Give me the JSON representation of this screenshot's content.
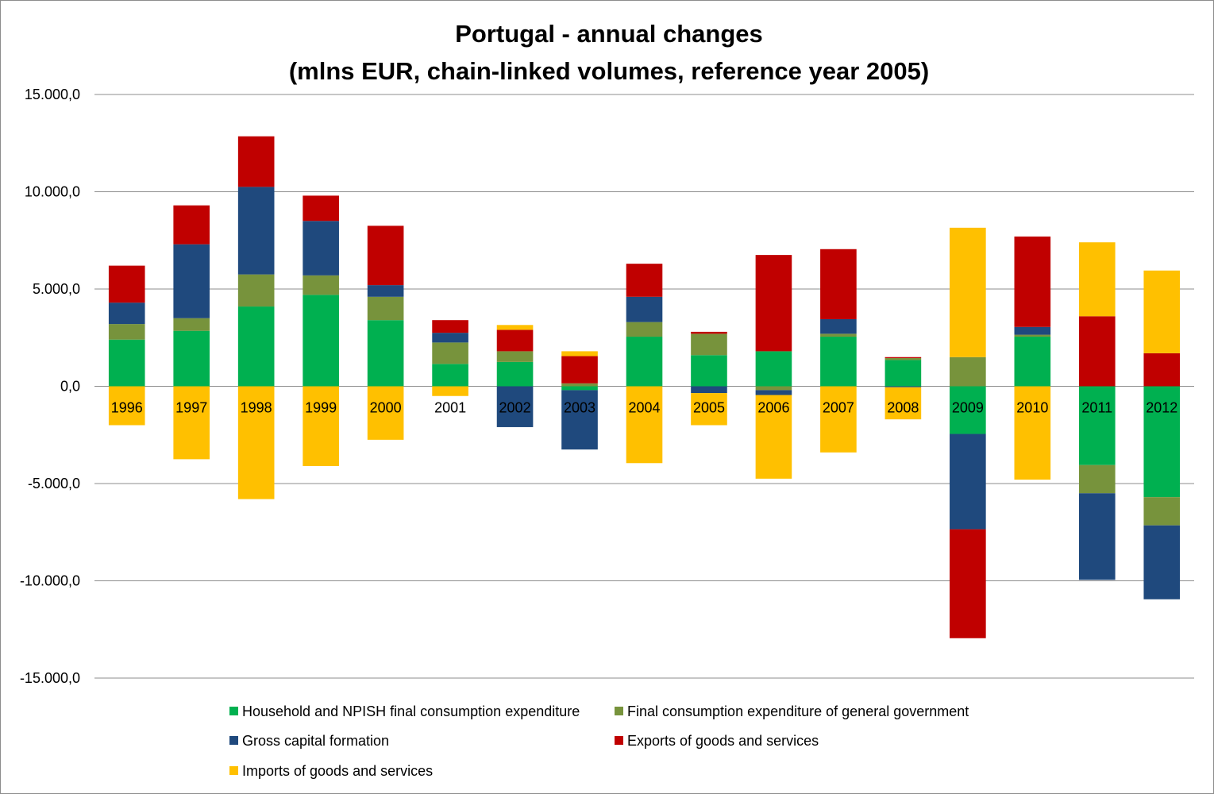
{
  "chart_data": {
    "type": "bar",
    "stacked": true,
    "title": [
      "Portugal - annual changes",
      "(mlns EUR, chain-linked volumes, reference year 2005)"
    ],
    "xlabel": "",
    "ylabel": "",
    "ylim": [
      -15000,
      15000
    ],
    "yticks": [
      15000,
      10000,
      5000,
      0,
      -5000,
      -10000,
      -15000
    ],
    "ytick_labels": [
      "15.000,0",
      "10.000,0",
      "5.000,0",
      "0,0",
      "-5.000,0",
      "-10.000,0",
      "-15.000,0"
    ],
    "grid": true,
    "legend_position": "bottom",
    "categories": [
      "1996",
      "1997",
      "1998",
      "1999",
      "2000",
      "2001",
      "2002",
      "2003",
      "2004",
      "2005",
      "2006",
      "2007",
      "2008",
      "2009",
      "2010",
      "2011",
      "2012"
    ],
    "series": [
      {
        "name": "Household and NPISH final consumption expenditure",
        "color": "#00b050",
        "values": [
          2400,
          2850,
          4100,
          4700,
          3400,
          1150,
          1250,
          -200,
          2550,
          1600,
          1800,
          2550,
          1350,
          -2450,
          2550,
          -4050,
          -5700
        ]
      },
      {
        "name": "Final consumption expenditure of general government",
        "color": "#77933c",
        "values": [
          800,
          650,
          1650,
          1000,
          1200,
          1100,
          550,
          150,
          750,
          1100,
          -200,
          150,
          100,
          1500,
          100,
          -1450,
          -1450
        ]
      },
      {
        "name": "Gross capital formation",
        "color": "#1f497d",
        "values": [
          1100,
          3800,
          4500,
          2800,
          600,
          500,
          -2100,
          -3050,
          1300,
          -350,
          -250,
          750,
          -50,
          -4900,
          400,
          -4450,
          -3800
        ]
      },
      {
        "name": "Exports of goods and services",
        "color": "#c00000",
        "values": [
          1900,
          2000,
          2600,
          1300,
          3050,
          650,
          1100,
          1400,
          1700,
          100,
          4950,
          3600,
          50,
          -5600,
          4650,
          3600,
          1700
        ]
      },
      {
        "name": "Imports of goods and services",
        "color": "#ffc000",
        "values": [
          -2000,
          -3750,
          -5800,
          -4100,
          -2750,
          -500,
          250,
          250,
          -3950,
          -1650,
          -4300,
          -3400,
          -1650,
          6650,
          -4800,
          3800,
          4250
        ]
      }
    ]
  }
}
